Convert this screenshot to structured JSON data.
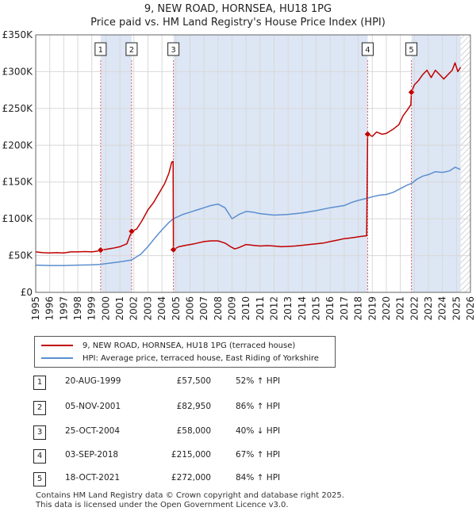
{
  "header": {
    "title_line1": "9, NEW ROAD, HORNSEA, HU18 1PG",
    "title_line2": "Price paid vs. HM Land Registry's House Price Index (HPI)"
  },
  "legend": {
    "property": "9, NEW ROAD, HORNSEA, HU18 1PG (terraced house)",
    "hpi": "HPI: Average price, terraced house, East Riding of Yorkshire"
  },
  "colors": {
    "property": "#c00000",
    "hpi": "#5b8fcf",
    "shade": "#dde6f4",
    "grid": "#d8d8d8",
    "marker_line": "#e06060"
  },
  "transactions": [
    {
      "num": "1",
      "date": "20-AUG-1999",
      "price": "£57,500",
      "hpi": "52% ↑ HPI"
    },
    {
      "num": "2",
      "date": "05-NOV-2001",
      "price": "£82,950",
      "hpi": "86% ↑ HPI"
    },
    {
      "num": "3",
      "date": "25-OCT-2004",
      "price": "£58,000",
      "hpi": "40% ↓ HPI"
    },
    {
      "num": "4",
      "date": "03-SEP-2018",
      "price": "£215,000",
      "hpi": "67% ↑ HPI"
    },
    {
      "num": "5",
      "date": "18-OCT-2021",
      "price": "£272,000",
      "hpi": "84% ↑ HPI"
    }
  ],
  "footer": {
    "line1": "Contains HM Land Registry data © Crown copyright and database right 2025.",
    "line2": "This data is licensed under the Open Government Licence v3.0."
  },
  "chart_data": {
    "type": "line",
    "title": "9, NEW ROAD, HORNSEA, HU18 1PG — Price paid vs. HM Land Registry's House Price Index (HPI)",
    "xlabel": "",
    "ylabel": "",
    "xlim": [
      1995,
      2026
    ],
    "ylim": [
      0,
      350000
    ],
    "x_ticks": [
      "1995",
      "1996",
      "1997",
      "1998",
      "1999",
      "2000",
      "2001",
      "2002",
      "2003",
      "2004",
      "2005",
      "2006",
      "2007",
      "2008",
      "2009",
      "2010",
      "2011",
      "2012",
      "2013",
      "2014",
      "2015",
      "2016",
      "2017",
      "2018",
      "2019",
      "2020",
      "2021",
      "2022",
      "2023",
      "2024",
      "2025",
      "2026"
    ],
    "y_ticks": [
      {
        "value": 0,
        "label": "£0"
      },
      {
        "value": 50000,
        "label": "£50K"
      },
      {
        "value": 100000,
        "label": "£100K"
      },
      {
        "value": 150000,
        "label": "£150K"
      },
      {
        "value": 200000,
        "label": "£200K"
      },
      {
        "value": 250000,
        "label": "£250K"
      },
      {
        "value": 300000,
        "label": "£300K"
      },
      {
        "value": 350000,
        "label": "£350K"
      }
    ],
    "grid": true,
    "shaded_ranges": [
      [
        1999.63,
        2001.84
      ],
      [
        2004.82,
        2018.67
      ],
      [
        2021.79,
        2025.3
      ]
    ],
    "hatched_from": 2025.3,
    "sales": [
      {
        "label": "1",
        "x": 1999.63,
        "y": 57500
      },
      {
        "label": "2",
        "x": 2001.84,
        "y": 82950
      },
      {
        "label": "3",
        "x": 2004.82,
        "y": 58000
      },
      {
        "label": "4",
        "x": 2018.67,
        "y": 215000
      },
      {
        "label": "5",
        "x": 2021.79,
        "y": 272000
      }
    ],
    "series": [
      {
        "name": "9, NEW ROAD, HORNSEA, HU18 1PG (terraced house)",
        "points": [
          [
            1995,
            55000
          ],
          [
            1995.5,
            54000
          ],
          [
            1996,
            53500
          ],
          [
            1996.5,
            54000
          ],
          [
            1997,
            53500
          ],
          [
            1997.5,
            55000
          ],
          [
            1998,
            55000
          ],
          [
            1998.5,
            55500
          ],
          [
            1999,
            55000
          ],
          [
            1999.4,
            56000
          ],
          [
            1999.63,
            57500
          ],
          [
            2000,
            58500
          ],
          [
            2000.5,
            60000
          ],
          [
            2001,
            62000
          ],
          [
            2001.5,
            66000
          ],
          [
            2001.84,
            82950
          ],
          [
            2002.2,
            86000
          ],
          [
            2002.6,
            98000
          ],
          [
            2003,
            112000
          ],
          [
            2003.4,
            122000
          ],
          [
            2003.8,
            135000
          ],
          [
            2004.2,
            148000
          ],
          [
            2004.5,
            162000
          ],
          [
            2004.7,
            177000
          ],
          [
            2004.8,
            178000
          ],
          [
            2004.82,
            58000
          ],
          [
            2005.2,
            62000
          ],
          [
            2005.7,
            64000
          ],
          [
            2006.3,
            66000
          ],
          [
            2007,
            69000
          ],
          [
            2007.5,
            70000
          ],
          [
            2008,
            70000
          ],
          [
            2008.5,
            67000
          ],
          [
            2008.9,
            62000
          ],
          [
            2009.2,
            59000
          ],
          [
            2009.5,
            61000
          ],
          [
            2010,
            65000
          ],
          [
            2010.5,
            64000
          ],
          [
            2011,
            63000
          ],
          [
            2011.5,
            63500
          ],
          [
            2012,
            63000
          ],
          [
            2012.5,
            62000
          ],
          [
            2013,
            62500
          ],
          [
            2013.5,
            63000
          ],
          [
            2014,
            64000
          ],
          [
            2014.5,
            65000
          ],
          [
            2015,
            66000
          ],
          [
            2015.5,
            67000
          ],
          [
            2016,
            69000
          ],
          [
            2016.5,
            71000
          ],
          [
            2017,
            73000
          ],
          [
            2017.5,
            74000
          ],
          [
            2018.2,
            76000
          ],
          [
            2018.6,
            77000
          ],
          [
            2018.67,
            215000
          ],
          [
            2019,
            212000
          ],
          [
            2019.3,
            218000
          ],
          [
            2019.7,
            215000
          ],
          [
            2020,
            216000
          ],
          [
            2020.5,
            222000
          ],
          [
            2020.9,
            228000
          ],
          [
            2021.2,
            240000
          ],
          [
            2021.5,
            248000
          ],
          [
            2021.75,
            255000
          ],
          [
            2021.79,
            272000
          ],
          [
            2022,
            282000
          ],
          [
            2022.3,
            288000
          ],
          [
            2022.6,
            296000
          ],
          [
            2022.9,
            302000
          ],
          [
            2023.2,
            292000
          ],
          [
            2023.5,
            302000
          ],
          [
            2023.8,
            296000
          ],
          [
            2024.1,
            290000
          ],
          [
            2024.4,
            296000
          ],
          [
            2024.7,
            302000
          ],
          [
            2024.9,
            312000
          ],
          [
            2025.1,
            300000
          ],
          [
            2025.3,
            306000
          ]
        ]
      },
      {
        "name": "HPI: Average price, terraced house, East Riding of Yorkshire",
        "points": [
          [
            1995,
            37000
          ],
          [
            1996,
            36500
          ],
          [
            1997,
            36500
          ],
          [
            1998,
            37000
          ],
          [
            1999,
            37500
          ],
          [
            1999.63,
            38000
          ],
          [
            2000,
            39000
          ],
          [
            2001,
            41500
          ],
          [
            2001.84,
            44000
          ],
          [
            2002.5,
            52000
          ],
          [
            2003,
            62000
          ],
          [
            2003.5,
            74000
          ],
          [
            2004,
            85000
          ],
          [
            2004.5,
            95000
          ],
          [
            2004.82,
            100000
          ],
          [
            2005.5,
            106000
          ],
          [
            2006,
            109000
          ],
          [
            2006.5,
            112000
          ],
          [
            2007,
            115000
          ],
          [
            2007.5,
            118000
          ],
          [
            2008,
            120000
          ],
          [
            2008.5,
            115000
          ],
          [
            2009,
            100000
          ],
          [
            2009.5,
            106000
          ],
          [
            2010,
            110000
          ],
          [
            2010.5,
            109000
          ],
          [
            2011,
            107000
          ],
          [
            2012,
            105000
          ],
          [
            2013,
            106000
          ],
          [
            2014,
            108000
          ],
          [
            2015,
            111000
          ],
          [
            2016,
            115000
          ],
          [
            2017,
            118000
          ],
          [
            2017.5,
            122000
          ],
          [
            2018,
            125000
          ],
          [
            2018.67,
            128000
          ],
          [
            2019,
            130000
          ],
          [
            2019.5,
            132000
          ],
          [
            2020,
            133000
          ],
          [
            2020.5,
            136000
          ],
          [
            2021,
            141000
          ],
          [
            2021.5,
            146000
          ],
          [
            2021.79,
            148000
          ],
          [
            2022.2,
            154000
          ],
          [
            2022.6,
            158000
          ],
          [
            2023,
            160000
          ],
          [
            2023.5,
            164000
          ],
          [
            2024,
            163000
          ],
          [
            2024.5,
            165000
          ],
          [
            2024.9,
            170000
          ],
          [
            2025.3,
            167000
          ]
        ]
      }
    ]
  }
}
